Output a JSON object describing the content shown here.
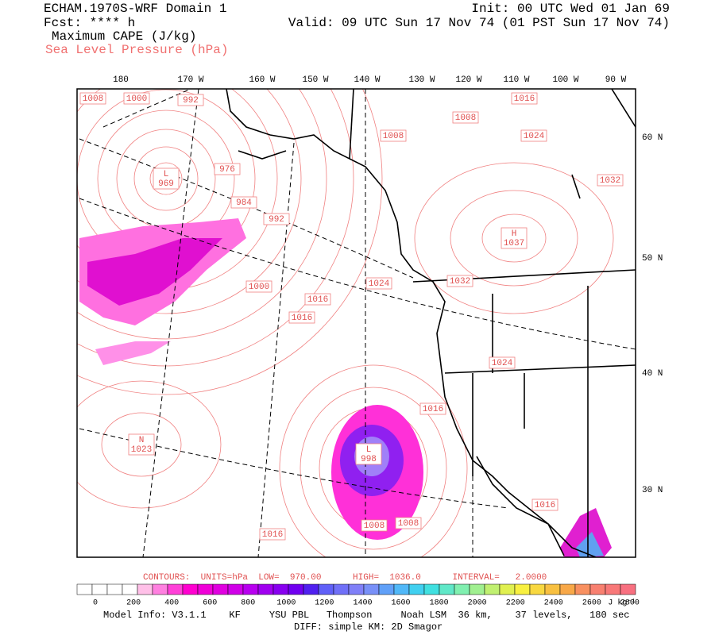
{
  "header": {
    "title": "ECHAM.1970S-WRF Domain 1",
    "forecast": "Fcst: **** h",
    "field1": "Maximum CAPE (J/kg)",
    "field2": "Sea Level Pressure (hPa)",
    "init": "Init: 00 UTC Wed 01 Jan 69",
    "valid": "Valid: 09 UTC Sun 17 Nov 74 (01 PST Sun 17 Nov 74)"
  },
  "map": {
    "lon_labels": [
      "180",
      "170 W",
      "160 W",
      "150 W",
      "140 W",
      "130 W",
      "120 W",
      "110 W",
      "100 W",
      "90 W"
    ],
    "lat_labels": [
      "60 N",
      "50 N",
      "40 N",
      "30 N"
    ],
    "contour_labels": [
      {
        "value": 1008
      },
      {
        "value": 1000
      },
      {
        "value": 992
      },
      {
        "value": 1016
      },
      {
        "value": 1008
      },
      {
        "value": 1008
      },
      {
        "value": 1024
      },
      {
        "symbol": "L",
        "value": 969
      },
      {
        "value": 976
      },
      {
        "value": 984
      },
      {
        "value": 992
      },
      {
        "value": 1032
      },
      {
        "symbol": "H",
        "value": 1037
      },
      {
        "value": 1000
      },
      {
        "value": 1016
      },
      {
        "value": 1016
      },
      {
        "value": 1024
      },
      {
        "value": 1032
      },
      {
        "value": 1024
      },
      {
        "value": 1016
      },
      {
        "symbol": "L",
        "value": 998
      },
      {
        "value": 1008
      },
      {
        "value": 1008
      },
      {
        "value": 1016
      },
      {
        "value": 1016
      },
      {
        "symbol": "N",
        "value": 1023
      }
    ]
  },
  "contours_caption": "CONTOURS:  UNITS=hPa  LOW=  970.00      HIGH=  1036.0      INTERVAL=   2.0000",
  "colorbar": {
    "colors": [
      "#ffffff",
      "#ffffff",
      "#ffffff",
      "#ffffff",
      "#ffc0e8",
      "#ff80e0",
      "#ff40d8",
      "#ff00d0",
      "#f000d8",
      "#e000e0",
      "#d000e8",
      "#b800f0",
      "#a000f0",
      "#8800f0",
      "#7000f0",
      "#5020f0",
      "#6060f8",
      "#7070f8",
      "#8080f8",
      "#7890f8",
      "#60a0f8",
      "#50b8f8",
      "#40d0f0",
      "#40e0e0",
      "#60e8c8",
      "#80f0b0",
      "#a0f090",
      "#c0f070",
      "#e0f050",
      "#f8f040",
      "#f8d840",
      "#f8c040",
      "#f8a848",
      "#f89060",
      "#f88070",
      "#f87878",
      "#f87080"
    ],
    "ticks": [
      0,
      200,
      400,
      600,
      800,
      1000,
      1200,
      1400,
      1600,
      1800,
      2000,
      2200,
      2400,
      2600,
      2800
    ],
    "unit": "J kg⁻¹"
  },
  "footer": {
    "model": "Model Info: V3.1.1    KF     YSU PBL   Thompson     Noah LSM  36 km,    37 levels,   180 sec",
    "diff": "DIFF: simple KM: 2D Smagor"
  }
}
